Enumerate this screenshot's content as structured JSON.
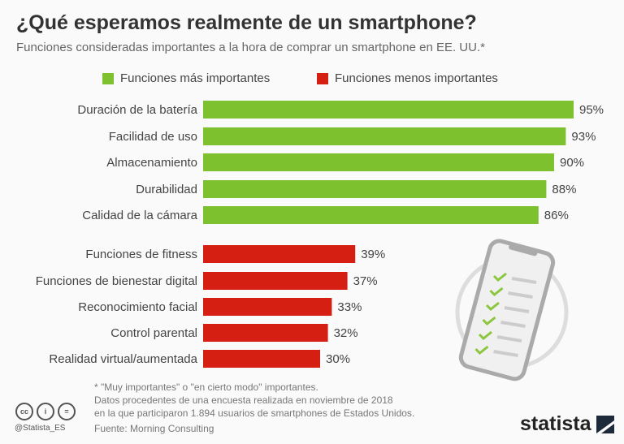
{
  "chart_data": {
    "type": "bar",
    "title": "¿Qué esperamos realmente de un smartphone?",
    "subtitle": "Funciones consideradas importantes a la hora de comprar un smartphone en EE. UU.*",
    "legend": [
      {
        "name": "Funciones más importantes",
        "color": "#7dc12e"
      },
      {
        "name": "Funciones menos importantes",
        "color": "#d41f12"
      }
    ],
    "legend_position": "top",
    "categories": [
      "Duración de la batería",
      "Facilidad de uso",
      "Almacenamiento",
      "Durabilidad",
      "Calidad de la cámara",
      "Funciones de fitness",
      "Funciones de bienestar digital",
      "Reconocimiento facial",
      "Control parental",
      "Realidad virtual/aumentada"
    ],
    "values": [
      95,
      93,
      90,
      88,
      86,
      39,
      37,
      33,
      32,
      30
    ],
    "labels": [
      "95%",
      "93%",
      "90%",
      "88%",
      "86%",
      "39%",
      "37%",
      "33%",
      "32%",
      "30%"
    ],
    "groups": [
      0,
      0,
      0,
      0,
      0,
      1,
      1,
      1,
      1,
      1
    ],
    "xlim": [
      0,
      100
    ],
    "unit": "%"
  },
  "footer": {
    "note": "* \"Muy importantes\" o \"en cierto modo\" importantes.",
    "line2": "Datos procedentes de una encuesta realizada en noviembre de 2018",
    "line3": "en la que participaron 1.894 usuarios de smartphones de Estados Unidos.",
    "source": "Fuente: Morning Consulting",
    "handle": "@Statista_ES",
    "cc": [
      "cc",
      "i",
      "="
    ],
    "logo": "statista"
  }
}
